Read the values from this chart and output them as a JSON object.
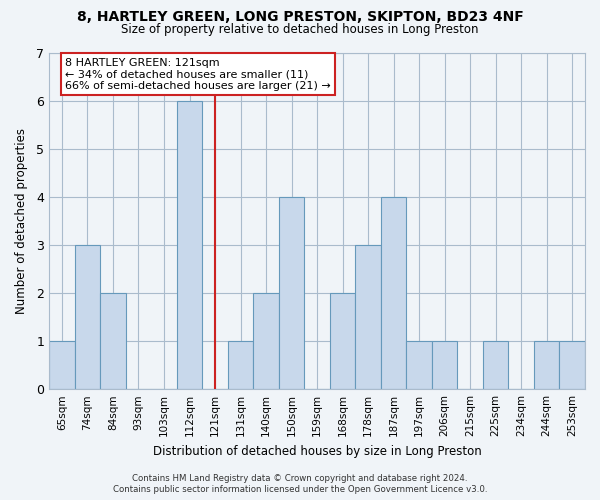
{
  "title": "8, HARTLEY GREEN, LONG PRESTON, SKIPTON, BD23 4NF",
  "subtitle": "Size of property relative to detached houses in Long Preston",
  "xlabel": "Distribution of detached houses by size in Long Preston",
  "ylabel": "Number of detached properties",
  "footer_line1": "Contains HM Land Registry data © Crown copyright and database right 2024.",
  "footer_line2": "Contains public sector information licensed under the Open Government Licence v3.0.",
  "categories": [
    "65sqm",
    "74sqm",
    "84sqm",
    "93sqm",
    "103sqm",
    "112sqm",
    "121sqm",
    "131sqm",
    "140sqm",
    "150sqm",
    "159sqm",
    "168sqm",
    "178sqm",
    "187sqm",
    "197sqm",
    "206sqm",
    "215sqm",
    "225sqm",
    "234sqm",
    "244sqm",
    "253sqm"
  ],
  "values": [
    1,
    3,
    2,
    0,
    0,
    6,
    0,
    1,
    2,
    4,
    0,
    2,
    3,
    4,
    1,
    1,
    0,
    1,
    0,
    1,
    1
  ],
  "highlight_index": 6,
  "bar_color": "#c8d8eb",
  "highlight_bar_color": "#c8d8eb",
  "highlight_line_color": "#cc2222",
  "ylim": [
    0,
    7
  ],
  "yticks": [
    0,
    1,
    2,
    3,
    4,
    5,
    6,
    7
  ],
  "annotation_title": "8 HARTLEY GREEN: 121sqm",
  "annotation_line1": "← 34% of detached houses are smaller (11)",
  "annotation_line2": "66% of semi-detached houses are larger (21) →",
  "background_color": "#f0f4f8",
  "plot_bg_color": "#f0f4f8",
  "grid_color": "#aabbcc"
}
